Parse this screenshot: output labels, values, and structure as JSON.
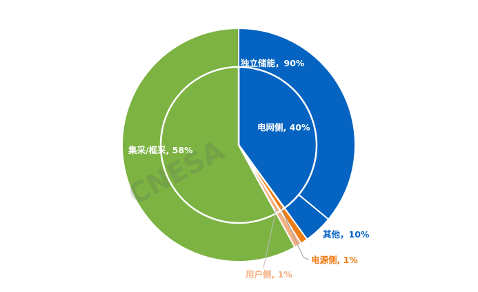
{
  "chart_data": {
    "type": "pie",
    "style": "nested-donut",
    "inner_ring": [
      {
        "label": "电网侧",
        "value": 40,
        "display": "电网侧, 40%",
        "color": "#0563C1"
      },
      {
        "label": "电源侧",
        "value": 1,
        "display": "电源侧, 1%",
        "color": "#ED7D16"
      },
      {
        "label": "用户侧",
        "value": 1,
        "display": "用户侧, 1%",
        "color": "#F4B183"
      },
      {
        "label": "集采/框采",
        "value": 58,
        "display": "集采/框采, 58%",
        "color": "#7CB342"
      }
    ],
    "outer_ring": [
      {
        "label": "独立储能",
        "value": 90,
        "parent": "电网侧",
        "display": "独立储能，90%",
        "color": "#0563C1"
      },
      {
        "label": "其他",
        "value": 10,
        "parent": "电网侧",
        "display": "其他，10%",
        "color": "#0563C1"
      }
    ],
    "watermark": "CNESA"
  }
}
